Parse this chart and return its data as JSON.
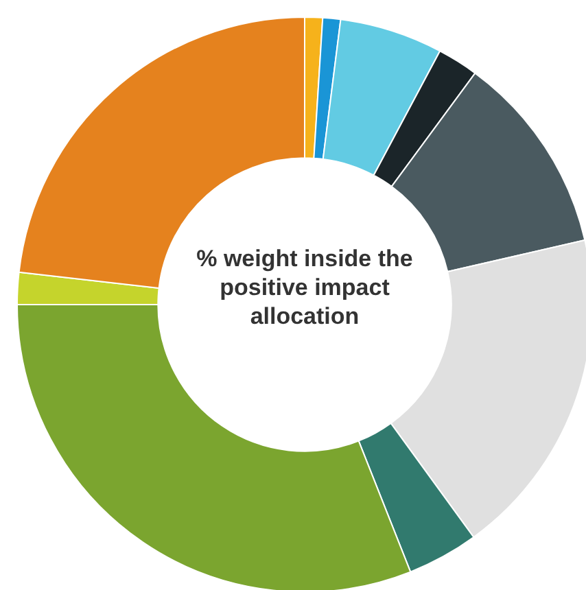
{
  "chart_data": {
    "type": "donut",
    "title": "% weight inside the positive impact allocation",
    "categories": [
      null,
      null,
      null,
      null,
      null,
      null,
      null,
      null,
      null,
      null
    ],
    "values": [
      1,
      1,
      5.8,
      2.3,
      11.3,
      18.6,
      4,
      31,
      1.8,
      23.2
    ],
    "colors": [
      "#f6b21b",
      "#1a95d6",
      "#62cbe3",
      "#1b2529",
      "#4a5a60",
      "#e0e0e0",
      "#317a6e",
      "#7ba52f",
      "#c5d42c",
      "#e5821e"
    ]
  }
}
